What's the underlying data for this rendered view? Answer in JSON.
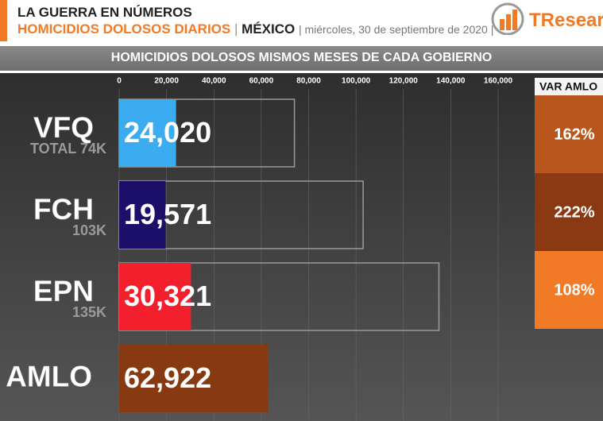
{
  "header": {
    "kicker": "LA GUERRA EN NÚMEROS",
    "title": "HOMICIDIOS DOLOSOS DIARIOS",
    "separator": "|",
    "country": "MÉXICO",
    "date": "| miércoles, 30 de septiembre de 2020 |",
    "logo": "TResearc"
  },
  "chart_data": {
    "type": "bar",
    "orientation": "horizontal",
    "title": "HOMICIDIOS DOLOSOS MISMOS MESES DE CADA GOBIERNO",
    "categories": [
      "VFQ",
      "FCH",
      "EPN",
      "AMLO"
    ],
    "values": [
      24020,
      19571,
      30321,
      62922
    ],
    "value_labels": [
      "24,020",
      "19,571",
      "30,321",
      "62,922"
    ],
    "colors": [
      "#3aacef",
      "#1c0f6a",
      "#f41f2d",
      "#873a12"
    ],
    "totals": {
      "values": [
        74000,
        103000,
        135000,
        null
      ],
      "value_labels": [
        "TOTAL 74K",
        "103K",
        "135K",
        null
      ],
      "color": "#9a9a9a"
    },
    "xlim": [
      0,
      160000
    ],
    "xticks": [
      0,
      {
        "value": 20000,
        "label": "20,000"
      },
      {
        "value": 40000,
        "label": "40,000"
      },
      {
        "value": 60000,
        "label": "60,000"
      },
      {
        "value": 80000,
        "label": "80,000"
      },
      {
        "value": 100000,
        "label": "100,000"
      },
      {
        "value": 120000,
        "label": "120,000"
      },
      {
        "value": 140000,
        "label": "140,000"
      },
      {
        "value": 160000,
        "label": "160,000"
      }
    ],
    "grid": true,
    "var_amlo": {
      "title": "VAR AMLO",
      "values": [
        162,
        222,
        108
      ],
      "value_labels": [
        "162%",
        "222%",
        "108%"
      ],
      "colors": [
        "#b9561d",
        "#8a3912",
        "#f07a26"
      ]
    }
  }
}
